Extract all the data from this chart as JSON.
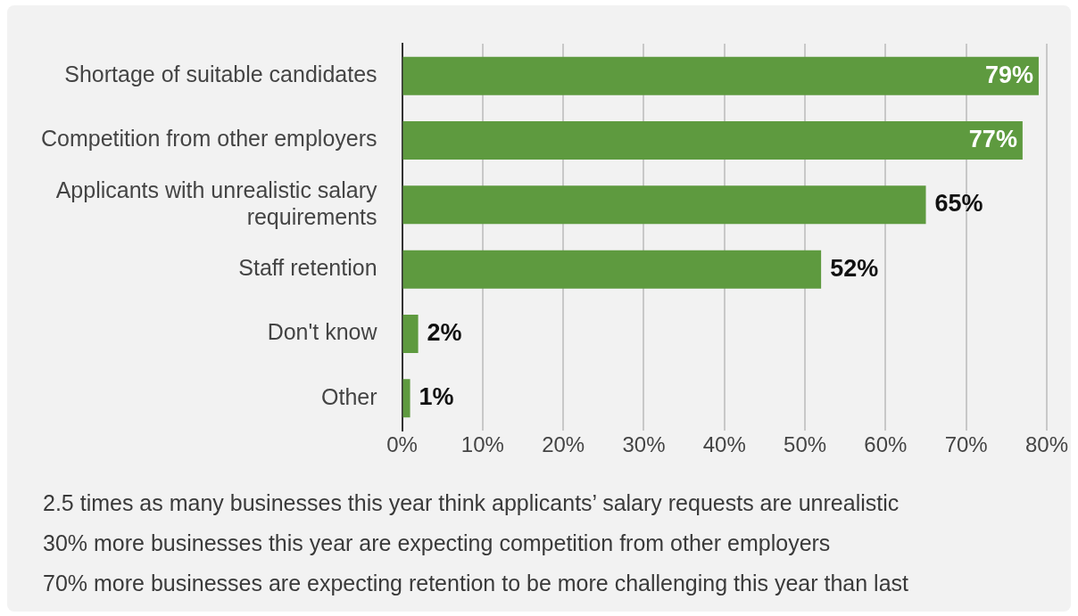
{
  "chart_data": {
    "type": "bar",
    "orientation": "horizontal",
    "categories": [
      "Shortage of suitable candidates",
      "Competition from other employers",
      "Applicants with unrealistic salary requirements",
      "Staff retention",
      "Don't know",
      "Other"
    ],
    "values": [
      79,
      77,
      65,
      52,
      2,
      1
    ],
    "value_labels": [
      "79%",
      "77%",
      "65%",
      "52%",
      "2%",
      "1%"
    ],
    "color": "#5e9a3f",
    "xlim": [
      0,
      80
    ],
    "xticks": [
      {
        "value": 0,
        "label": "0%"
      },
      {
        "value": 10,
        "label": "10%"
      },
      {
        "value": 20,
        "label": "20%"
      },
      {
        "value": 30,
        "label": "30%"
      },
      {
        "value": 40,
        "label": "40%"
      },
      {
        "value": 50,
        "label": "50%"
      },
      {
        "value": 60,
        "label": "60%"
      },
      {
        "value": 70,
        "label": "70%"
      },
      {
        "value": 80,
        "label": "80%"
      }
    ],
    "grid": "x",
    "annotations": [
      "2.5 times as many businesses this year think applicants’ salary requests are unrealistic",
      "30% more businesses this year are expecting competition from other employers",
      "70% more businesses are expecting retention to be more challenging this year than last"
    ]
  }
}
